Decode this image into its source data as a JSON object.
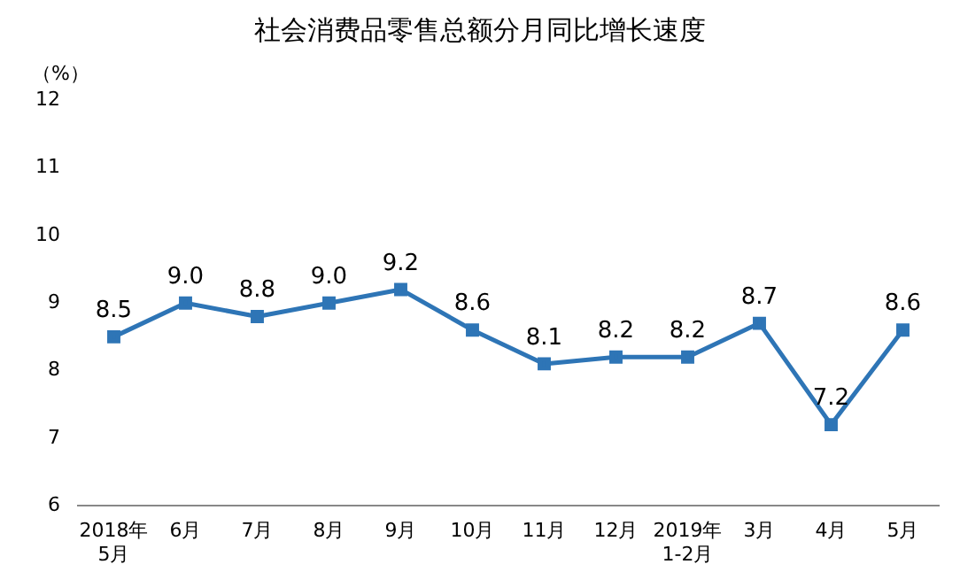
{
  "chart_data": {
    "type": "line",
    "title": "社会消费品零售总额分月同比增长速度",
    "ylabel": "（%）",
    "categories": [
      "2018年\n5月",
      "6月",
      "7月",
      "8月",
      "9月",
      "10月",
      "11月",
      "12月",
      "2019年\n1-2月",
      "3月",
      "4月",
      "5月"
    ],
    "series": [
      {
        "color": "#2e75b6",
        "values": [
          8.5,
          9.0,
          8.8,
          9.0,
          9.2,
          8.6,
          8.1,
          8.2,
          8.2,
          8.7,
          7.2,
          8.6
        ],
        "value_labels": [
          "8.5",
          "9.0",
          "8.8",
          "9.0",
          "9.2",
          "8.6",
          "8.1",
          "8.2",
          "8.2",
          "8.7",
          "7.2",
          "8.6"
        ]
      }
    ],
    "ylim": [
      6,
      12
    ],
    "yticks": [
      6,
      7,
      8,
      9,
      10,
      11,
      12
    ],
    "grid": false,
    "legend": false,
    "marker": "square",
    "line_style": "solid"
  }
}
